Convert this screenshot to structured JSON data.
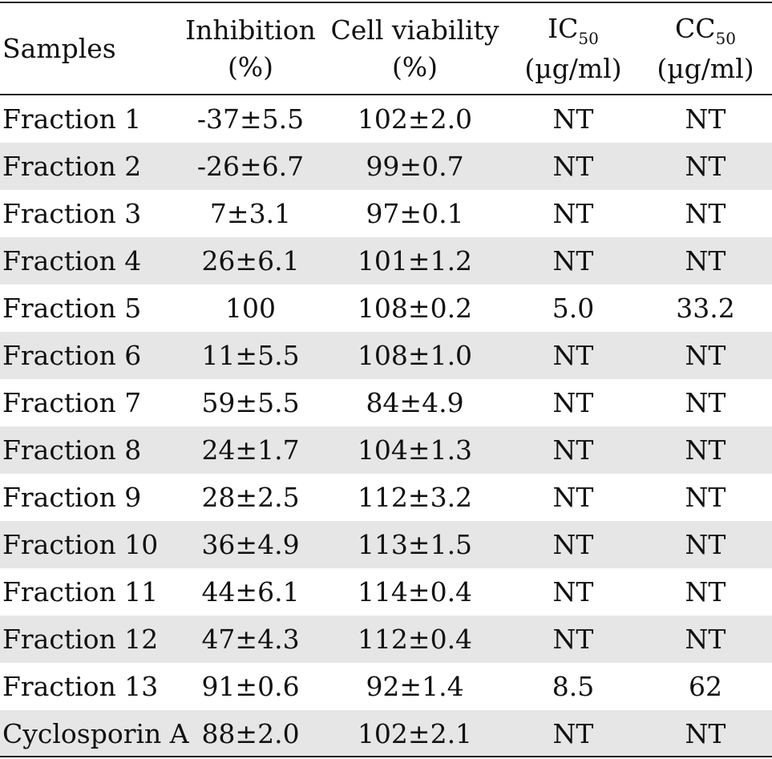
{
  "header": {
    "samples": "Samples",
    "inhibition_l1": "Inhibition",
    "inhibition_l2": "(%)",
    "viability_l1": "Cell viability",
    "viability_l2": "(%)",
    "ic_main": "IC",
    "ic_sub": "50",
    "ic_unit": "(µg/ml)",
    "cc_main": "CC",
    "cc_sub": "50",
    "cc_unit": "(µg/ml)"
  },
  "rows": [
    {
      "sample": "Fraction 1",
      "inhibition": "-37±5.5",
      "viability": "102±2.0",
      "ic50": "NT",
      "cc50": "NT"
    },
    {
      "sample": "Fraction 2",
      "inhibition": "-26±6.7",
      "viability": "99±0.7",
      "ic50": "NT",
      "cc50": "NT"
    },
    {
      "sample": "Fraction 3",
      "inhibition": "7±3.1",
      "viability": "97±0.1",
      "ic50": "NT",
      "cc50": "NT"
    },
    {
      "sample": "Fraction 4",
      "inhibition": "26±6.1",
      "viability": "101±1.2",
      "ic50": "NT",
      "cc50": "NT"
    },
    {
      "sample": "Fraction 5",
      "inhibition": "100",
      "viability": "108±0.2",
      "ic50": "5.0",
      "cc50": "33.2"
    },
    {
      "sample": "Fraction 6",
      "inhibition": "11±5.5",
      "viability": "108±1.0",
      "ic50": "NT",
      "cc50": "NT"
    },
    {
      "sample": "Fraction 7",
      "inhibition": "59±5.5",
      "viability": "84±4.9",
      "ic50": "NT",
      "cc50": "NT"
    },
    {
      "sample": "Fraction 8",
      "inhibition": "24±1.7",
      "viability": "104±1.3",
      "ic50": "NT",
      "cc50": "NT"
    },
    {
      "sample": "Fraction 9",
      "inhibition": "28±2.5",
      "viability": "112±3.2",
      "ic50": "NT",
      "cc50": "NT"
    },
    {
      "sample": "Fraction 10",
      "inhibition": "36±4.9",
      "viability": "113±1.5",
      "ic50": "NT",
      "cc50": "NT"
    },
    {
      "sample": "Fraction 11",
      "inhibition": "44±6.1",
      "viability": "114±0.4",
      "ic50": "NT",
      "cc50": "NT"
    },
    {
      "sample": "Fraction 12",
      "inhibition": "47±4.3",
      "viability": "112±0.4",
      "ic50": "NT",
      "cc50": "NT"
    },
    {
      "sample": "Fraction 13",
      "inhibition": "91±0.6",
      "viability": "92±1.4",
      "ic50": "8.5",
      "cc50": "62"
    },
    {
      "sample": "Cyclosporin A",
      "inhibition": "88±2.0",
      "viability": "102±2.1",
      "ic50": "NT",
      "cc50": "NT"
    }
  ]
}
